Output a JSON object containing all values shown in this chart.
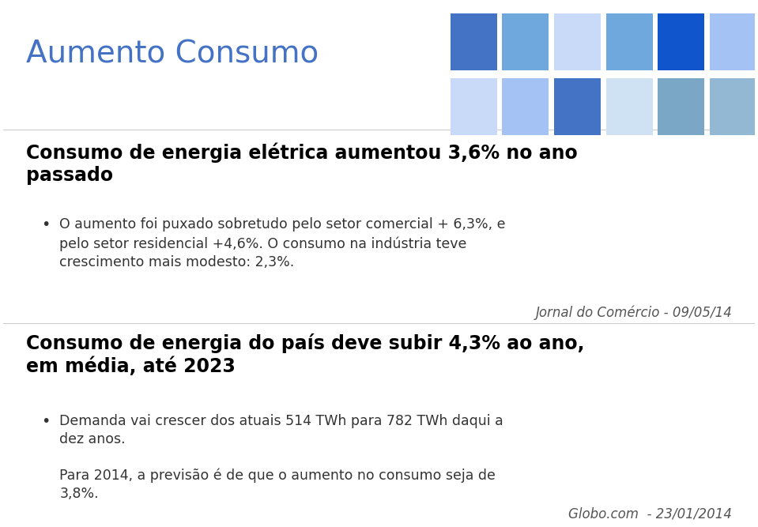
{
  "title": "Aumento Consumo",
  "title_color": "#4472C4",
  "title_fontsize": 28,
  "background_color": "#ffffff",
  "header1": "Consumo de energia elétrica aumentou 3,6% no ano\npassado",
  "header1_fontsize": 17,
  "bullet1": "O aumento foi puxado sobretudo pelo setor comercial + 6,3%, e\npelo setor residencial +4,6%. O consumo na indústria teve\ncrescimento mais modesto: 2,3%.",
  "bullet1_fontsize": 12.5,
  "source1": "Jornal do Comércio - 09/05/14",
  "source1_fontsize": 12,
  "header2": "Consumo de energia do país deve subir 4,3% ao ano,\nem média, até 2023",
  "header2_fontsize": 17,
  "bullet2a": "Demanda vai crescer dos atuais 514 TWh para 782 TWh daqui a\ndez anos.",
  "bullet2b": "Para 2014, a previsão é de que o aumento no consumo seja de\n3,8%.",
  "bullet2_fontsize": 12.5,
  "source2": "Globo.com  - 23/01/2014",
  "source2_fontsize": 12,
  "grid_colors_row1": [
    "#4472C4",
    "#6FA8DC",
    "#C9DAF8",
    "#6FA8DC",
    "#1155CC",
    "#A4C2F4"
  ],
  "grid_colors_row2": [
    "#C9DAF8",
    "#A4C2F4",
    "#4472C4",
    "#CFE2F3",
    "#7BA7C7",
    "#92B8D4"
  ]
}
